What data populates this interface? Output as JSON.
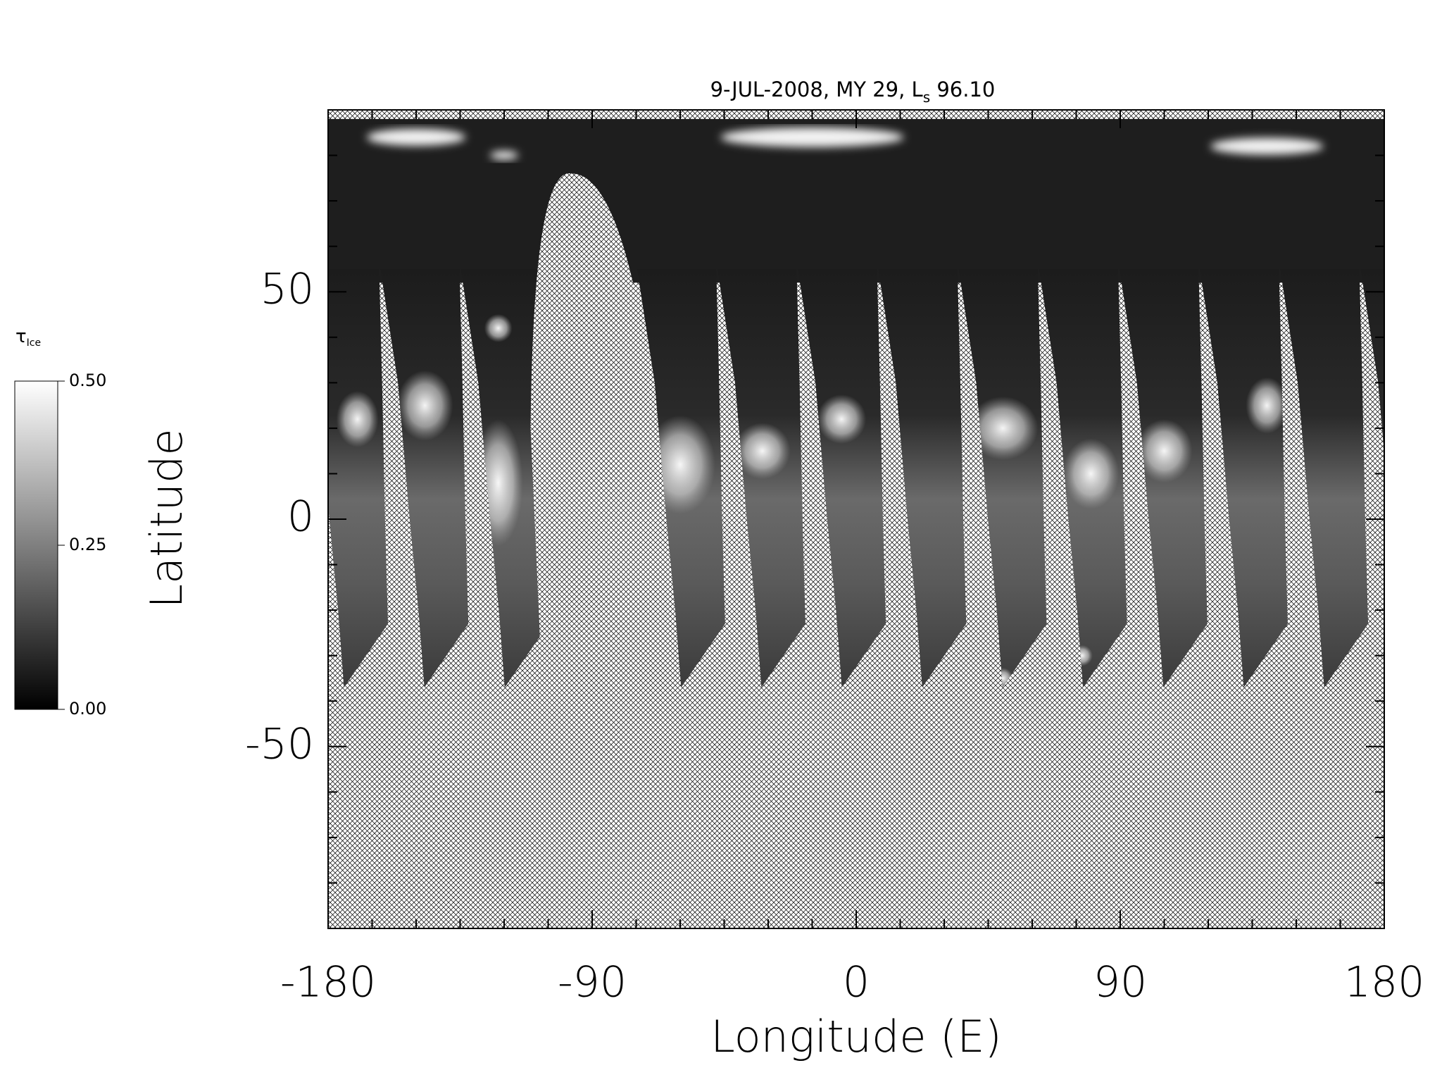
{
  "chart_data": {
    "type": "map",
    "title": "9-JUL-2008, MY 29,  L",
    "title_subscript": "s",
    "title_suffix": " 96.10",
    "xlabel": "Longitude (E)",
    "ylabel": "Latitude",
    "xlim": [
      -180,
      180
    ],
    "ylim": [
      -90,
      90
    ],
    "xticks": [
      -180,
      -90,
      0,
      90,
      180
    ],
    "yticks": [
      -50,
      0,
      50
    ],
    "xminorticks": [
      -165,
      -150,
      -135,
      -120,
      -105,
      -75,
      -60,
      -45,
      -30,
      -15,
      15,
      30,
      45,
      60,
      75,
      105,
      120,
      135,
      150,
      165
    ],
    "yminorticks": [
      -80,
      -70,
      -60,
      -40,
      -30,
      -20,
      -10,
      10,
      20,
      30,
      40,
      60,
      70,
      80
    ],
    "colorbar": {
      "label": "τ",
      "label_subscript": "Ice",
      "lim": [
        0,
        0.5
      ],
      "colors": [
        "#000000",
        "#ffffff"
      ],
      "ticks": [
        {
          "value": 0,
          "label": "0.00"
        },
        {
          "value": 0.25,
          "label": "0.25"
        },
        {
          "value": 0.5,
          "label": "0.50"
        }
      ]
    }
  }
}
